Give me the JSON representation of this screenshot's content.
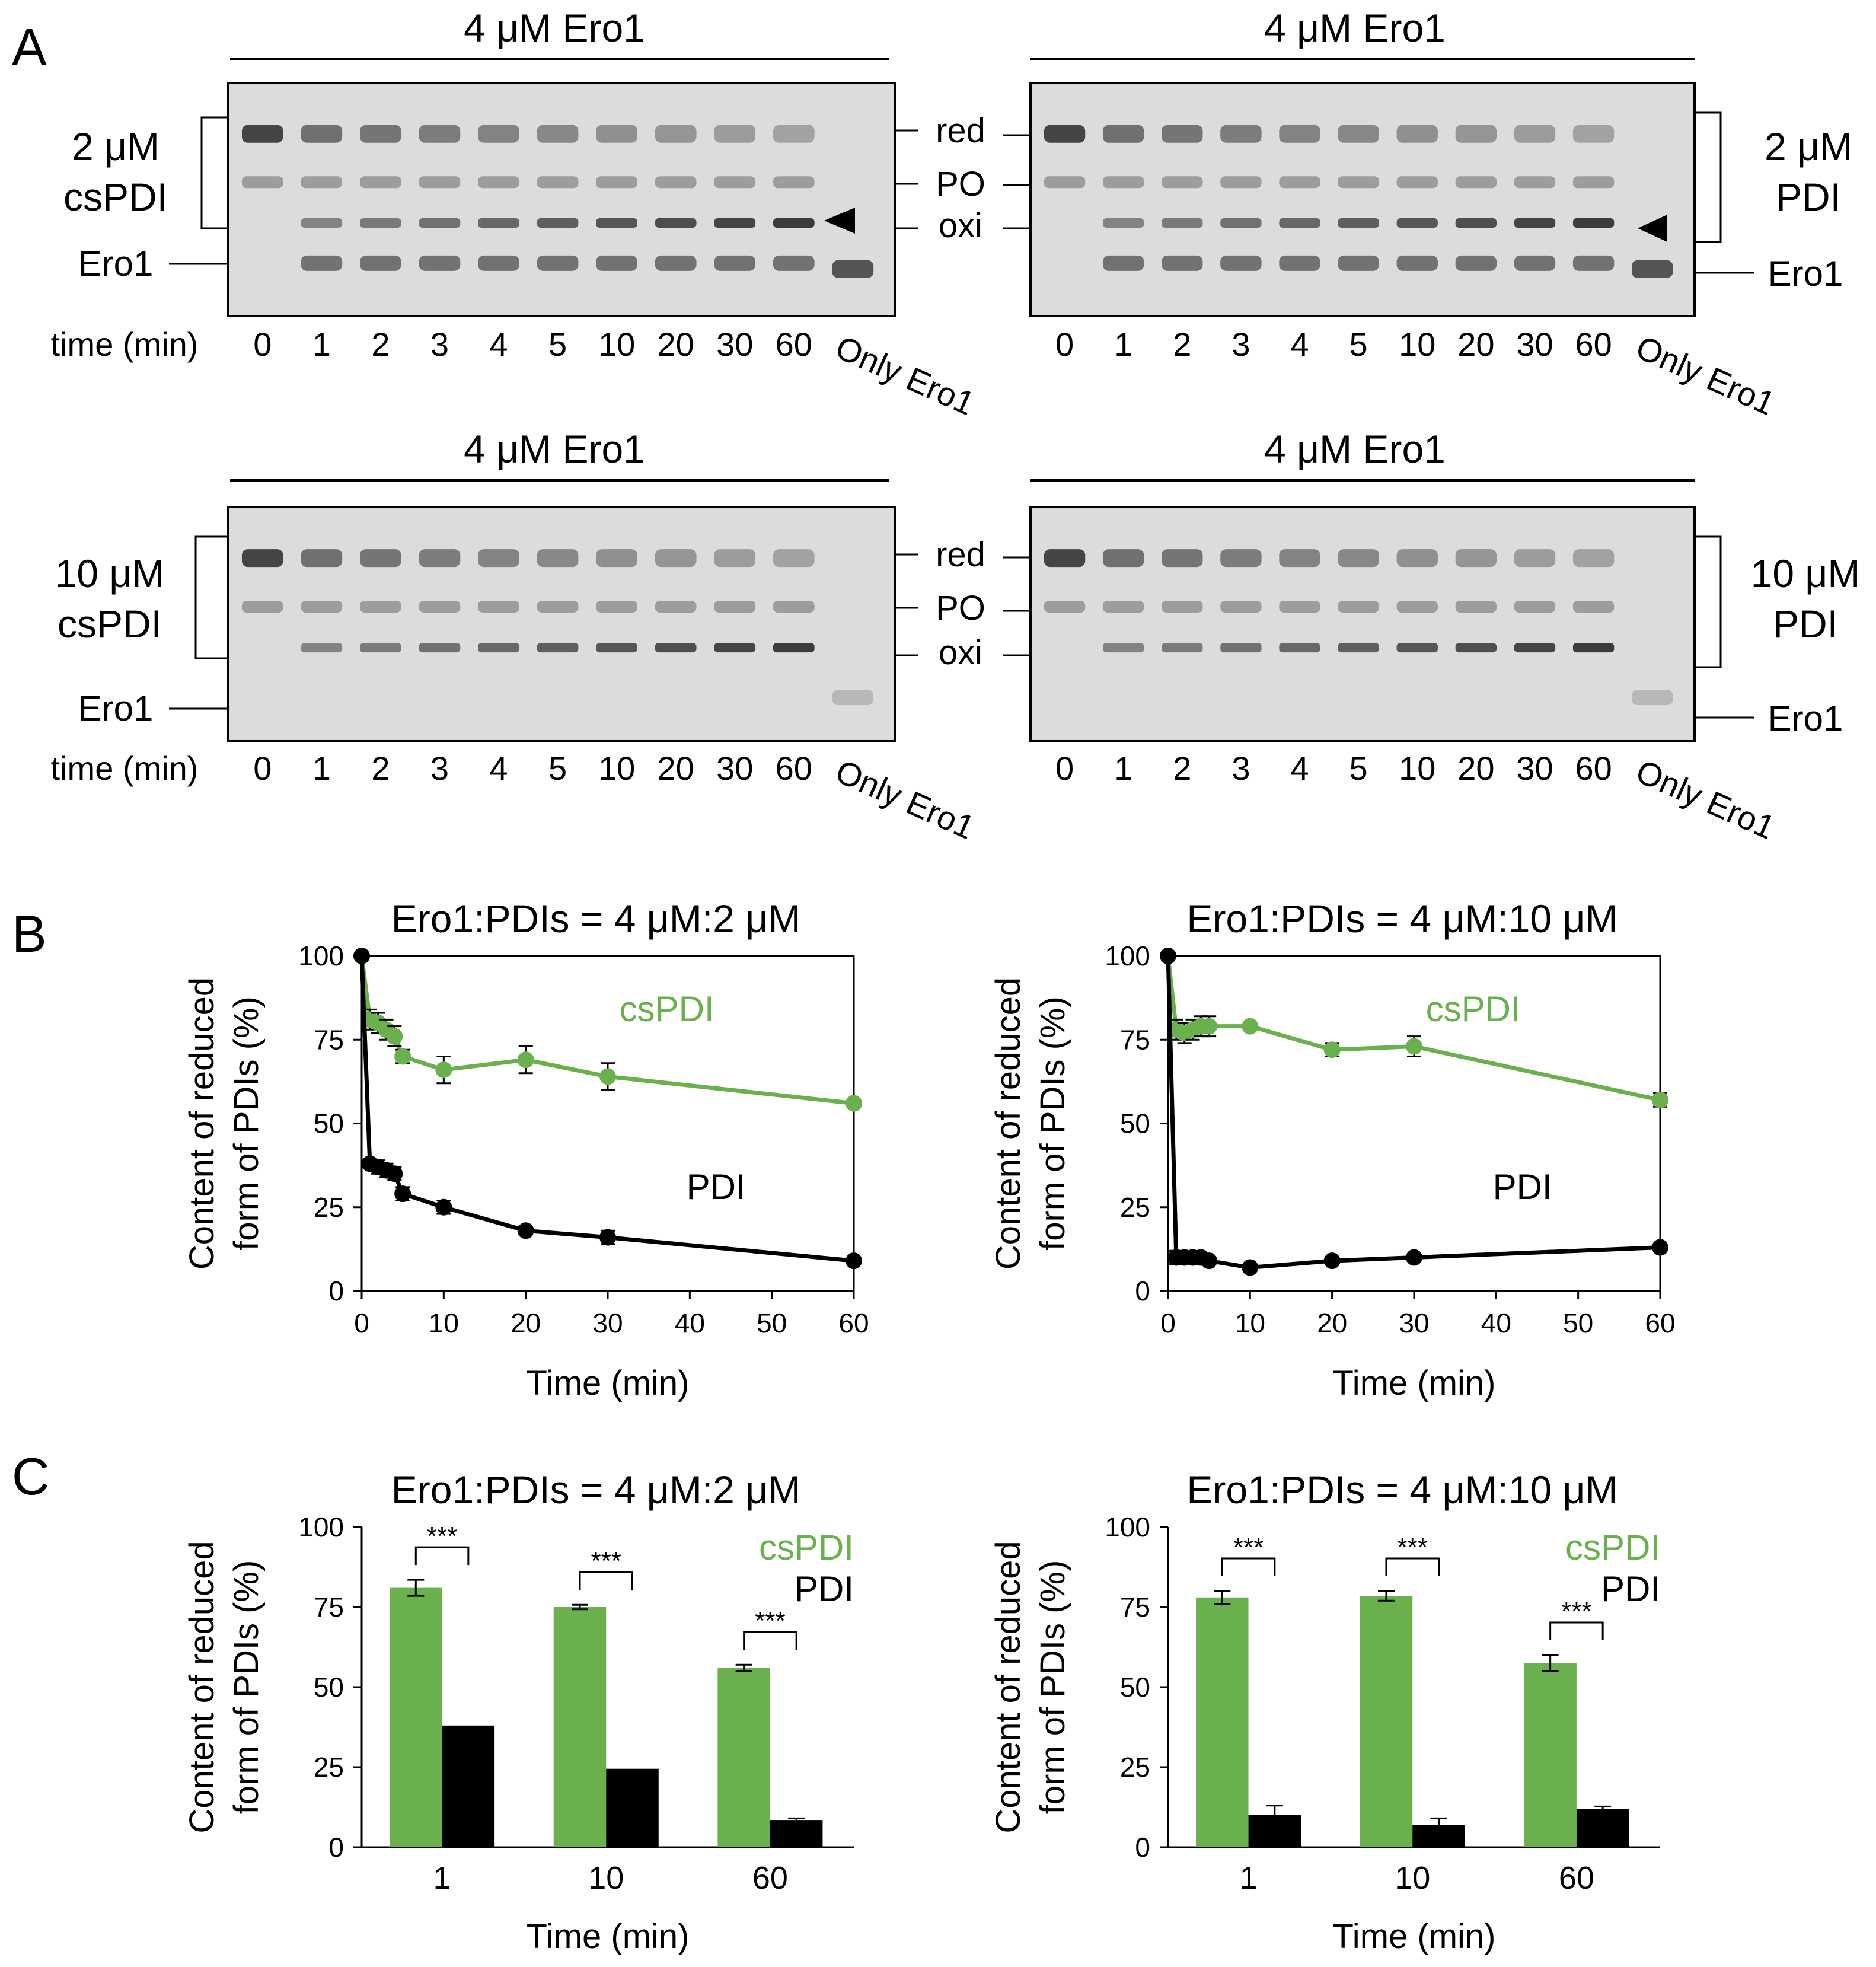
{
  "colors": {
    "cspdi": "#6ab04c",
    "pdi": "#000000",
    "gel_bg": "#dcdcdc",
    "band": "#3c3c3c"
  },
  "panel_letters": {
    "a": "A",
    "b": "B",
    "c": "C"
  },
  "gels": [
    {
      "header": "4 μM Ero1",
      "bracket_line1": "2 μM",
      "bracket_line2": "csPDI",
      "ero1_label": "Ero1",
      "bands_ero1": true,
      "band_right_labels": [
        "red",
        "PO",
        "oxi"
      ],
      "has_arrow": true
    },
    {
      "header": "4 μM Ero1",
      "bracket_line1": "2 μM",
      "bracket_line2": "PDI",
      "ero1_label": "Ero1",
      "bands_ero1": true,
      "has_arrow": true
    },
    {
      "header": "4 μM Ero1",
      "bracket_line1": "10 μM",
      "bracket_line2": "csPDI",
      "ero1_label": "Ero1",
      "bands_ero1": false,
      "band_right_labels": [
        "red",
        "PO",
        "oxi"
      ],
      "has_arrow": false
    },
    {
      "header": "4 μM Ero1",
      "bracket_line1": "10 μM",
      "bracket_line2": "PDI",
      "ero1_label": "Ero1",
      "bands_ero1": false,
      "has_arrow": false
    }
  ],
  "lanes": {
    "time_label": "time (min)",
    "times": [
      "0",
      "1",
      "2",
      "3",
      "4",
      "5",
      "10",
      "20",
      "30",
      "60"
    ],
    "only_label": "Only Ero1"
  },
  "chart_data": [
    {
      "type": "line",
      "panel": "B",
      "title": "Ero1:PDIs = 4 μM:2 μM",
      "xlabel": "Time (min)",
      "ylabel_line1": "Content of reduced",
      "ylabel_line2": "form of PDIs (%)",
      "xlim": [
        0,
        60
      ],
      "ylim": [
        0,
        100
      ],
      "xticks": [
        0,
        10,
        20,
        30,
        40,
        50,
        60
      ],
      "yticks": [
        0,
        25,
        50,
        75,
        100
      ],
      "x": [
        0,
        1,
        2,
        3,
        4,
        5,
        10,
        20,
        30,
        60
      ],
      "series": [
        {
          "name": "csPDI",
          "color": "#6ab04c",
          "values": [
            100,
            81,
            80,
            78,
            76,
            70,
            66,
            69,
            64,
            56
          ],
          "errors": [
            0,
            3,
            3,
            3,
            3,
            2,
            4,
            4,
            4,
            1
          ]
        },
        {
          "name": "PDI",
          "color": "#000000",
          "values": [
            100,
            38,
            37,
            36,
            35,
            29,
            25,
            18,
            16,
            9
          ],
          "errors": [
            0,
            1,
            2,
            2,
            2,
            2,
            2,
            1,
            2,
            1
          ]
        }
      ],
      "label_cspdi": "csPDI",
      "label_pdi": "PDI"
    },
    {
      "type": "line",
      "panel": "B",
      "title": "Ero1:PDIs = 4 μM:10 μM",
      "xlabel": "Time (min)",
      "ylabel_line1": "Content of reduced",
      "ylabel_line2": "form of PDIs (%)",
      "xlim": [
        0,
        60
      ],
      "ylim": [
        0,
        100
      ],
      "xticks": [
        0,
        10,
        20,
        30,
        40,
        50,
        60
      ],
      "yticks": [
        0,
        25,
        50,
        75,
        100
      ],
      "x": [
        0,
        1,
        2,
        3,
        4,
        5,
        10,
        20,
        30,
        60
      ],
      "series": [
        {
          "name": "csPDI",
          "color": "#6ab04c",
          "values": [
            100,
            78,
            77,
            78,
            79,
            79,
            79,
            72,
            73,
            57
          ],
          "errors": [
            0,
            3,
            3,
            3,
            3,
            3,
            1,
            2,
            3,
            2
          ]
        },
        {
          "name": "PDI",
          "color": "#000000",
          "values": [
            100,
            10,
            10,
            10,
            10,
            9,
            7,
            9,
            10,
            13
          ],
          "errors": [
            0,
            2,
            1,
            1,
            1,
            1,
            1,
            1,
            1,
            1
          ]
        }
      ],
      "label_cspdi": "csPDI",
      "label_pdi": "PDI"
    },
    {
      "type": "bar",
      "panel": "C",
      "title": "Ero1:PDIs = 4 μM:2 μM",
      "xlabel": "Time (min)",
      "ylabel_line1": "Content of reduced",
      "ylabel_line2": "form of PDIs (%)",
      "ylim": [
        0,
        100
      ],
      "yticks": [
        0,
        25,
        50,
        75,
        100
      ],
      "categories": [
        "1",
        "10",
        "60"
      ],
      "series": [
        {
          "name": "csPDI",
          "color": "#6ab04c",
          "values": [
            81,
            75,
            56
          ],
          "errors": [
            2.5,
            0.7,
            1
          ]
        },
        {
          "name": "PDI",
          "color": "#000000",
          "values": [
            38,
            24.5,
            8.5
          ],
          "errors": [
            0,
            0,
            0.5
          ]
        }
      ],
      "significance": [
        "***",
        "***",
        "***"
      ],
      "legend": [
        "csPDI",
        "PDI"
      ]
    },
    {
      "type": "bar",
      "panel": "C",
      "title": "Ero1:PDIs = 4 μM:10 μM",
      "xlabel": "Time (min)",
      "ylabel_line1": "Content of reduced",
      "ylabel_line2": "form of PDIs (%)",
      "ylim": [
        0,
        100
      ],
      "yticks": [
        0,
        25,
        50,
        75,
        100
      ],
      "categories": [
        "1",
        "10",
        "60"
      ],
      "series": [
        {
          "name": "csPDI",
          "color": "#6ab04c",
          "values": [
            78,
            78.5,
            57.5
          ],
          "errors": [
            2,
            1.5,
            2.5
          ]
        },
        {
          "name": "PDI",
          "color": "#000000",
          "values": [
            10,
            7,
            12
          ],
          "errors": [
            3,
            2,
            0.7
          ]
        }
      ],
      "significance": [
        "***",
        "***",
        "***"
      ],
      "legend": [
        "csPDI",
        "PDI"
      ]
    }
  ]
}
